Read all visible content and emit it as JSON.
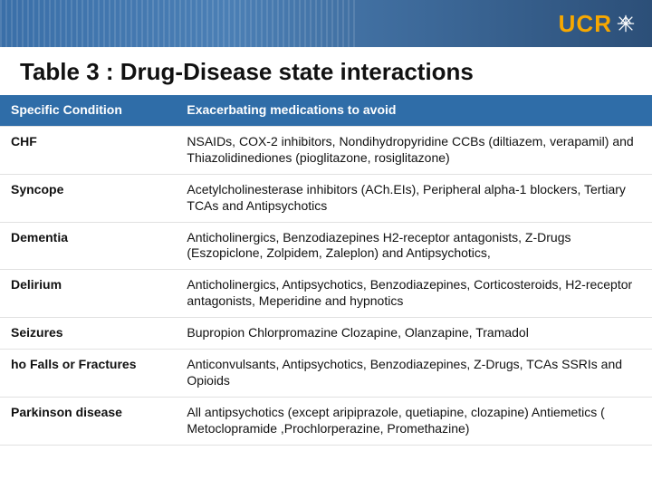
{
  "brand": {
    "text": "UCR",
    "text_color": "#f7a800",
    "band_bg_left": "#3a6fa8",
    "band_bg_right": "#2c4f78"
  },
  "title": "Table 3 : Drug-Disease state interactions",
  "table": {
    "header_bg": "#2f6da8",
    "header_fg": "#ffffff",
    "columns": [
      "Specific Condition",
      "Exacerbating medications to avoid"
    ],
    "rows": [
      {
        "condition": "CHF",
        "medications": "NSAIDs, COX-2 inhibitors, Nondihydropyridine CCBs (diltiazem, verapamil) and Thiazolidinediones (pioglitazone, rosiglitazone)"
      },
      {
        "condition": "Syncope",
        "medications": " Acetylcholinesterase inhibitors (ACh.EIs), Peripheral alpha-1 blockers, Tertiary TCAs and Antipsychotics"
      },
      {
        "condition": "Dementia",
        "medications": "Anticholinergics, Benzodiazepines H2-receptor antagonists, Z-Drugs (Eszopiclone, Zolpidem, Zaleplon)  and Antipsychotics,"
      },
      {
        "condition": "Delirium",
        "medications": "Anticholinergics, Antipsychotics, Benzodiazepines, Corticosteroids, H2-receptor antagonists,  Meperidine and  hypnotics"
      },
      {
        "condition": "Seizures",
        "medications": "Bupropion Chlorpromazine Clozapine, Olanzapine, Tramadol"
      },
      {
        "condition": "ho Falls or Fractures",
        "medications": "Anticonvulsants, Antipsychotics, Benzodiazepines, Z-Drugs, TCAs SSRIs and Opioids"
      },
      {
        "condition": "Parkinson disease",
        "medications": "All antipsychotics (except aripiprazole, quetiapine, clozapine) Antiemetics ( Metoclopramide ,Prochlorperazine, Promethazine)"
      }
    ]
  }
}
